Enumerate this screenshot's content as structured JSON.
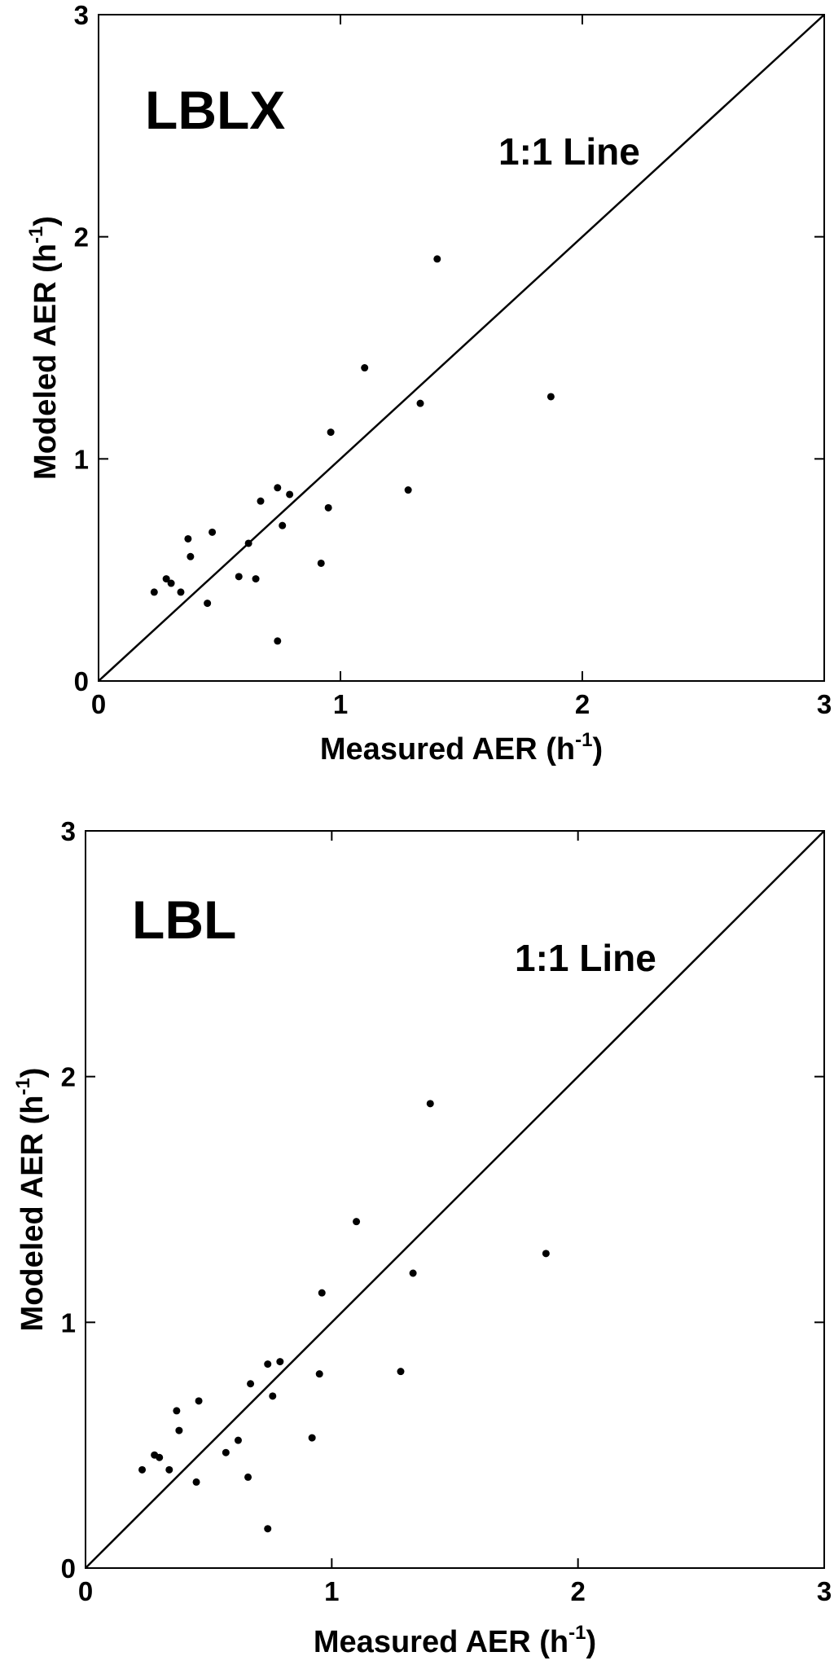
{
  "chart_data": [
    {
      "type": "scatter",
      "panel_label": "LBLX",
      "annotation": "1:1 Line",
      "xlabel": {
        "base": "Measured AER (h",
        "sup": "-1",
        "tail": ")"
      },
      "ylabel": {
        "base": "Modeled AER (h",
        "sup": "-1",
        "tail": ")"
      },
      "xlim": [
        0,
        3
      ],
      "ylim": [
        0,
        3
      ],
      "xticks": [
        "0",
        "1",
        "2",
        "3"
      ],
      "yticks": [
        "0",
        "1",
        "2",
        "3"
      ],
      "grid": false,
      "reference_line": {
        "from": [
          0,
          0
        ],
        "to": [
          3,
          3
        ]
      },
      "points": [
        [
          0.23,
          0.4
        ],
        [
          0.28,
          0.46
        ],
        [
          0.3,
          0.44
        ],
        [
          0.34,
          0.4
        ],
        [
          0.37,
          0.64
        ],
        [
          0.38,
          0.56
        ],
        [
          0.45,
          0.35
        ],
        [
          0.47,
          0.67
        ],
        [
          0.58,
          0.47
        ],
        [
          0.62,
          0.62
        ],
        [
          0.65,
          0.46
        ],
        [
          0.67,
          0.81
        ],
        [
          0.74,
          0.87
        ],
        [
          0.76,
          0.7
        ],
        [
          0.79,
          0.84
        ],
        [
          0.74,
          0.18
        ],
        [
          0.92,
          0.53
        ],
        [
          0.95,
          0.78
        ],
        [
          0.96,
          1.12
        ],
        [
          1.1,
          1.41
        ],
        [
          1.28,
          0.86
        ],
        [
          1.33,
          1.25
        ],
        [
          1.4,
          1.9
        ],
        [
          1.87,
          1.28
        ]
      ]
    },
    {
      "type": "scatter",
      "panel_label": "LBL",
      "annotation": "1:1 Line",
      "xlabel": {
        "base": "Measured AER (h",
        "sup": "-1",
        "tail": ")"
      },
      "ylabel": {
        "base": "Modeled AER (h",
        "sup": "-1",
        "tail": ")"
      },
      "xlim": [
        0,
        3
      ],
      "ylim": [
        0,
        3
      ],
      "xticks": [
        "0",
        "1",
        "2",
        "3"
      ],
      "yticks": [
        "0",
        "1",
        "2",
        "3"
      ],
      "grid": false,
      "reference_line": {
        "from": [
          0,
          0
        ],
        "to": [
          3,
          3
        ]
      },
      "points": [
        [
          0.23,
          0.4
        ],
        [
          0.28,
          0.46
        ],
        [
          0.3,
          0.45
        ],
        [
          0.34,
          0.4
        ],
        [
          0.37,
          0.64
        ],
        [
          0.38,
          0.56
        ],
        [
          0.45,
          0.35
        ],
        [
          0.46,
          0.68
        ],
        [
          0.57,
          0.47
        ],
        [
          0.62,
          0.52
        ],
        [
          0.66,
          0.37
        ],
        [
          0.67,
          0.75
        ],
        [
          0.74,
          0.83
        ],
        [
          0.76,
          0.7
        ],
        [
          0.79,
          0.84
        ],
        [
          0.74,
          0.16
        ],
        [
          0.92,
          0.53
        ],
        [
          0.95,
          0.79
        ],
        [
          0.96,
          1.12
        ],
        [
          1.1,
          1.41
        ],
        [
          1.28,
          0.8
        ],
        [
          1.33,
          1.2
        ],
        [
          1.4,
          1.89
        ],
        [
          1.87,
          1.28
        ]
      ]
    }
  ]
}
